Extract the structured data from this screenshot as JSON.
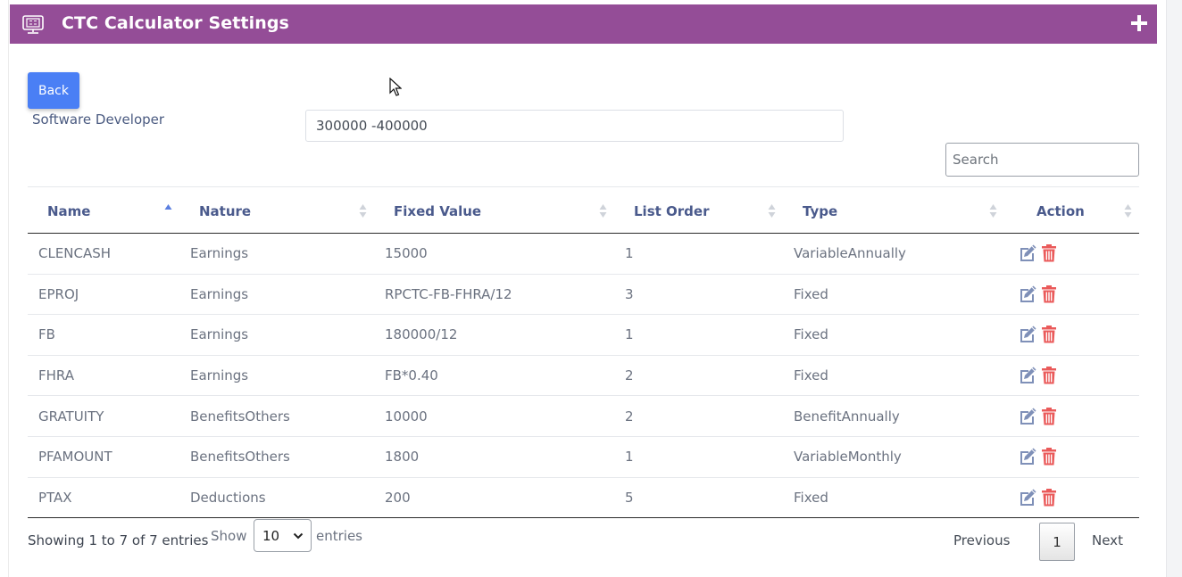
{
  "header": {
    "title": "CTC Calculator Settings",
    "icon": "calculator-monitor-icon",
    "add_icon": "plus-icon",
    "bg_color": "#944d97"
  },
  "form": {
    "back_label": "Back",
    "designation": "Software Developer",
    "salary_range": "300000 -400000",
    "search_placeholder": "Search"
  },
  "table": {
    "columns": [
      "Name",
      "Nature",
      "Fixed Value",
      "List Order",
      "Type",
      "Action"
    ],
    "rows": [
      [
        "CLENCASH",
        "Earnings",
        "15000",
        "1",
        "VariableAnnually"
      ],
      [
        "EPROJ",
        "Earnings",
        "RPCTC-FB-FHRA/12",
        "3",
        "Fixed"
      ],
      [
        "FB",
        "Earnings",
        "180000/12",
        "1",
        "Fixed"
      ],
      [
        "FHRA",
        "Earnings",
        "FB*0.40",
        "2",
        "Fixed"
      ],
      [
        "GRATUITY",
        "BenefitsOthers",
        "10000",
        "2",
        "BenefitAnnually"
      ],
      [
        "PFAMOUNT",
        "BenefitsOthers",
        "1800",
        "1",
        "VariableMonthly"
      ],
      [
        "PTAX",
        "Deductions",
        "200",
        "5",
        "Fixed"
      ]
    ]
  },
  "footer": {
    "info": "Showing 1 to 7 of 7 entries",
    "show_label": "Show",
    "page_size": "10",
    "entries_label": "entries",
    "previous": "Previous",
    "current_page": "1",
    "next": "Next"
  }
}
